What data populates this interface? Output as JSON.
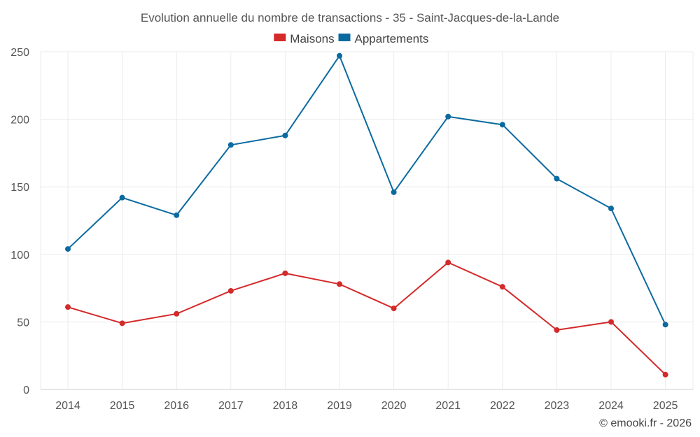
{
  "chart_data": {
    "type": "line",
    "title": "Evolution annuelle du nombre de transactions - 35 - Saint-Jacques-de-la-Lande",
    "categories": [
      "2014",
      "2015",
      "2016",
      "2017",
      "2018",
      "2019",
      "2020",
      "2021",
      "2022",
      "2023",
      "2024",
      "2025"
    ],
    "series": [
      {
        "name": "Maisons",
        "color": "#d42a2a",
        "values": [
          61,
          49,
          56,
          73,
          86,
          78,
          60,
          94,
          76,
          44,
          50,
          11
        ]
      },
      {
        "name": "Appartements",
        "color": "#0b6aa0",
        "values": [
          104,
          142,
          129,
          181,
          188,
          247,
          146,
          202,
          196,
          156,
          134,
          48
        ]
      }
    ],
    "ylim": [
      0,
      250
    ],
    "yticks": [
      0,
      50,
      100,
      150,
      200,
      250
    ],
    "xlabel": "",
    "ylabel": "",
    "grid": true,
    "legend_position": "top-center"
  },
  "credit": "© emooki.fr - 2026"
}
